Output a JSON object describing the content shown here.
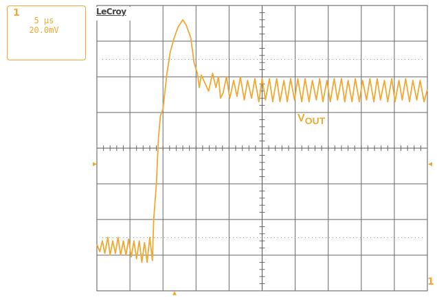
{
  "channel": {
    "marker": "1",
    "timebase": "5 µs",
    "volts_per_div": "20.0mV",
    "color": "#f0a830"
  },
  "brand": "LeCroy",
  "trace_label": {
    "main": "V",
    "sub": "OUT"
  },
  "trigger_marker": "1",
  "chart_data": {
    "type": "line",
    "title": "",
    "xlabel": "",
    "ylabel": "",
    "grid": true,
    "x_divisions": 10,
    "y_divisions": 8,
    "x_scale_per_div_us": 5,
    "y_scale_per_div_mV": 20,
    "xlim_us": [
      0,
      50
    ],
    "ylim_mV": [
      -80,
      80
    ],
    "series": [
      {
        "color": "#f0a830",
        "x_us": [
          0,
          0.44,
          0.83,
          1.2,
          1.65,
          2.0,
          2.4,
          2.8,
          3.2,
          3.6,
          4.0,
          4.4,
          4.8,
          5.2,
          5.6,
          6.0,
          6.4,
          6.8,
          7.2,
          7.6,
          8.0,
          8.4,
          8.6,
          9.0,
          9.3,
          9.6,
          10.0,
          10.6,
          11.1,
          11.7,
          12.3,
          13.0,
          13.5,
          14.2,
          14.7,
          15.2,
          15.5,
          15.8,
          16.4,
          16.9,
          17.5,
          18.0,
          18.4,
          18.7,
          19.1,
          19.6,
          20.1,
          20.7,
          21.2,
          21.7,
          22.3,
          22.8,
          23.4,
          23.9,
          24.5,
          25.0,
          25.5,
          26.1,
          26.6,
          27.2,
          27.7,
          28.3,
          28.8,
          29.3,
          29.9,
          30.4,
          31.0,
          31.5,
          32.1,
          32.6,
          33.2,
          33.7,
          34.2,
          34.8,
          35.3,
          35.9,
          36.4,
          37.0,
          37.5,
          38.0,
          38.6,
          39.1,
          39.7,
          40.2,
          40.8,
          41.3,
          41.9,
          42.4,
          42.9,
          43.5,
          44.0,
          44.6,
          45.1,
          45.7,
          46.2,
          46.7,
          47.3,
          47.8,
          48.4,
          48.9,
          49.5,
          50.0
        ],
        "y_mV": [
          -54,
          -58,
          -52,
          -59,
          -50,
          -60,
          -52,
          -59,
          -50,
          -60,
          -52,
          -60,
          -51,
          -61,
          -52,
          -62,
          -52,
          -64,
          -53,
          -64,
          -50,
          -63,
          -40,
          -20,
          5,
          18,
          22,
          42,
          54,
          62,
          68,
          72,
          69,
          62,
          48,
          42,
          34,
          41,
          36,
          32,
          42,
          34,
          40,
          28,
          31,
          40,
          28,
          38,
          29,
          40,
          27,
          38,
          28,
          39,
          26,
          39,
          27,
          39,
          26,
          39,
          26,
          38,
          26,
          39,
          27,
          39,
          26,
          39,
          26,
          38,
          27,
          39,
          26,
          38,
          26,
          39,
          27,
          39,
          26,
          38,
          26,
          39,
          26,
          38,
          27,
          39,
          26,
          39,
          27,
          38,
          26,
          39,
          26,
          38,
          27,
          39,
          26,
          38,
          27,
          38,
          26,
          33
        ]
      }
    ]
  }
}
